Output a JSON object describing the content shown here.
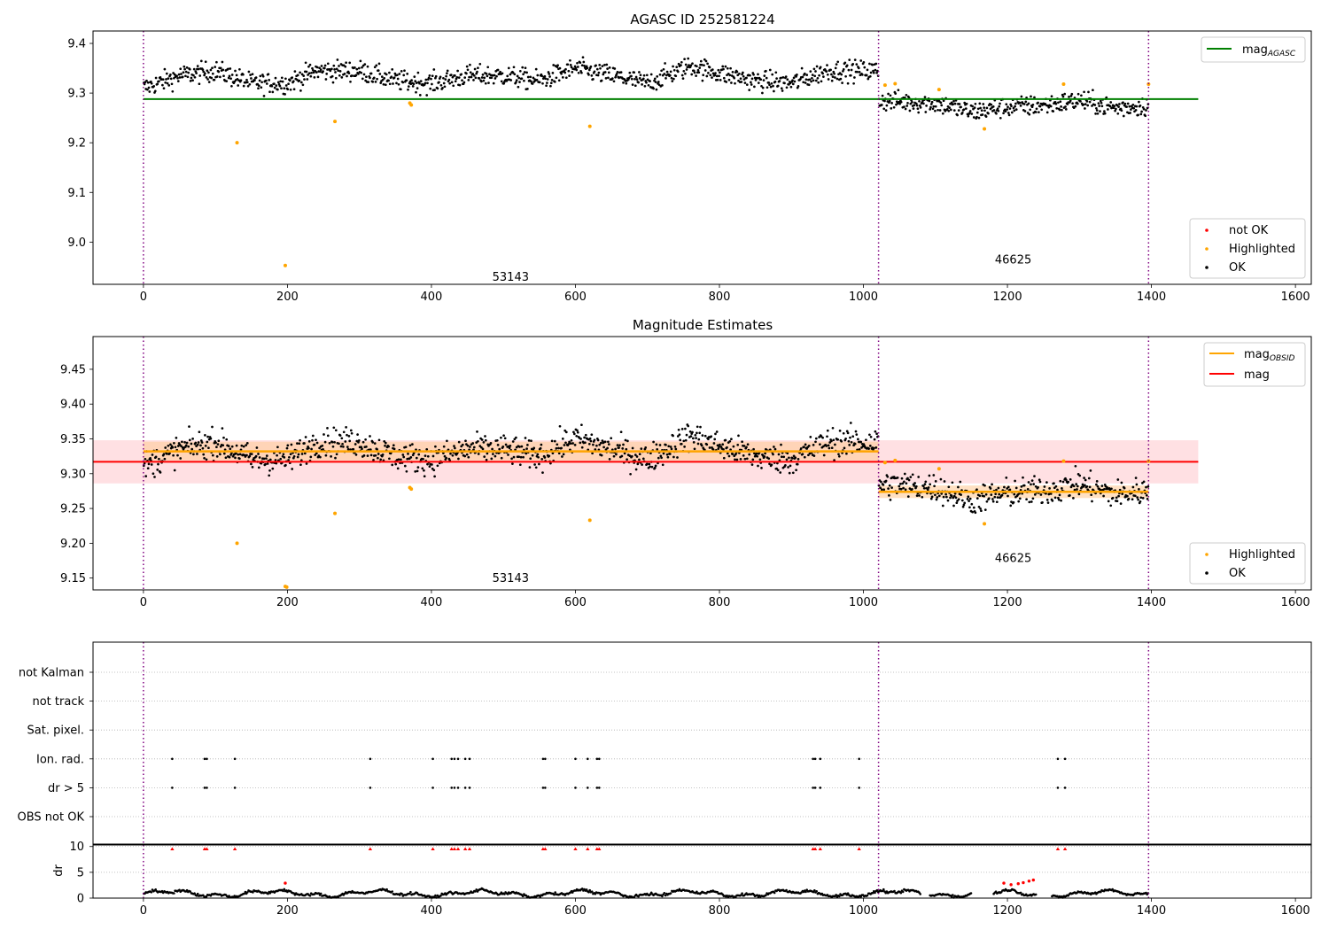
{
  "chart_data": [
    {
      "type": "scatter",
      "title": "AGASC ID 252581224",
      "xlim": [
        -70,
        1622
      ],
      "ylim": [
        8.915,
        9.425
      ],
      "xticks": [
        0,
        200,
        400,
        600,
        800,
        1000,
        1200,
        1400,
        1600
      ],
      "yticks": [
        9.0,
        9.1,
        9.2,
        9.3,
        9.4
      ],
      "obsid_boundaries": [
        0,
        1021,
        1396
      ],
      "obsid_labels": [
        {
          "text": "53143",
          "x": 510,
          "y": 8.92
        },
        {
          "text": "46625",
          "x": 1208,
          "y": 8.955
        }
      ],
      "mag_agasc": {
        "value": 9.288,
        "x": [
          0,
          1465
        ],
        "color": "#008000"
      },
      "legend_lines": [
        {
          "label": "mag",
          "sub": "AGASC",
          "color": "#008000"
        }
      ],
      "legend_points": [
        {
          "label": "not OK",
          "color": "#ff0000"
        },
        {
          "label": "Highlighted",
          "color": "#ffa500"
        },
        {
          "label": "OK",
          "color": "#000000"
        }
      ],
      "ok_segments": [
        {
          "x": [
            0,
            1021
          ],
          "knots": [
            [
              0,
              9.31
            ],
            [
              50,
              9.335
            ],
            [
              100,
              9.345
            ],
            [
              150,
              9.32
            ],
            [
              200,
              9.32
            ],
            [
              240,
              9.345
            ],
            [
              300,
              9.345
            ],
            [
              350,
              9.325
            ],
            [
              400,
              9.32
            ],
            [
              450,
              9.335
            ],
            [
              500,
              9.335
            ],
            [
              550,
              9.325
            ],
            [
              600,
              9.35
            ],
            [
              650,
              9.335
            ],
            [
              700,
              9.32
            ],
            [
              760,
              9.355
            ],
            [
              800,
              9.34
            ],
            [
              850,
              9.325
            ],
            [
              900,
              9.32
            ],
            [
              950,
              9.345
            ],
            [
              1021,
              9.345
            ]
          ],
          "spread": 0.012
        },
        {
          "x": [
            1021,
            1396
          ],
          "knots": [
            [
              1021,
              9.285
            ],
            [
              1100,
              9.28
            ],
            [
              1150,
              9.262
            ],
            [
              1200,
              9.272
            ],
            [
              1250,
              9.275
            ],
            [
              1300,
              9.285
            ],
            [
              1350,
              9.27
            ],
            [
              1396,
              9.275
            ]
          ],
          "spread": 0.012
        }
      ],
      "highlighted": [
        {
          "x": 130,
          "y": 9.2
        },
        {
          "x": 197,
          "y": 8.953
        },
        {
          "x": 266,
          "y": 9.243
        },
        {
          "x": 370,
          "y": 9.28
        },
        {
          "x": 372,
          "y": 9.276
        },
        {
          "x": 620,
          "y": 9.233
        },
        {
          "x": 1030,
          "y": 9.316
        },
        {
          "x": 1044,
          "y": 9.319
        },
        {
          "x": 1105,
          "y": 9.307
        },
        {
          "x": 1168,
          "y": 9.228
        },
        {
          "x": 1278,
          "y": 9.318
        },
        {
          "x": 1396,
          "y": 9.318
        }
      ]
    },
    {
      "type": "scatter",
      "title": "Magnitude Estimates",
      "xlim": [
        -70,
        1622
      ],
      "ylim": [
        9.133,
        9.497
      ],
      "xticks": [
        0,
        200,
        400,
        600,
        800,
        1000,
        1200,
        1400,
        1600
      ],
      "yticks": [
        9.15,
        9.2,
        9.25,
        9.3,
        9.35,
        9.4,
        9.45
      ],
      "obsid_boundaries": [
        0,
        1021,
        1396
      ],
      "obsid_labels": [
        {
          "text": "53143",
          "x": 510,
          "y": 9.143
        },
        {
          "text": "46625",
          "x": 1208,
          "y": 9.172
        }
      ],
      "mag": {
        "value": 9.317,
        "band": [
          9.286,
          9.348
        ],
        "x": [
          -70,
          1465
        ],
        "color": "#ff0000",
        "band_color": "#ffe0e3"
      },
      "mag_obsid": [
        {
          "x": [
            0,
            1021
          ],
          "value": 9.332,
          "band": [
            9.319,
            9.346
          ]
        },
        {
          "x": [
            1021,
            1396
          ],
          "value": 9.274,
          "band": [
            9.265,
            9.283
          ]
        }
      ],
      "mag_obsid_color": "#ffa500",
      "legend_lines": [
        {
          "label": "mag",
          "sub": "OBSID",
          "color": "#ffa500"
        },
        {
          "label": "mag",
          "sub": "",
          "color": "#ff0000"
        }
      ],
      "legend_points": [
        {
          "label": "Highlighted",
          "color": "#ffa500"
        },
        {
          "label": "OK",
          "color": "#000000"
        }
      ],
      "ok_segments": [
        {
          "x": [
            0,
            1021
          ],
          "knots": [
            [
              0,
              9.31
            ],
            [
              50,
              9.335
            ],
            [
              100,
              9.345
            ],
            [
              150,
              9.32
            ],
            [
              200,
              9.32
            ],
            [
              240,
              9.345
            ],
            [
              300,
              9.345
            ],
            [
              350,
              9.325
            ],
            [
              400,
              9.32
            ],
            [
              450,
              9.335
            ],
            [
              500,
              9.335
            ],
            [
              550,
              9.325
            ],
            [
              600,
              9.35
            ],
            [
              650,
              9.335
            ],
            [
              700,
              9.32
            ],
            [
              760,
              9.355
            ],
            [
              800,
              9.34
            ],
            [
              850,
              9.325
            ],
            [
              900,
              9.32
            ],
            [
              950,
              9.345
            ],
            [
              1021,
              9.345
            ]
          ],
          "spread": 0.012
        },
        {
          "x": [
            1021,
            1396
          ],
          "knots": [
            [
              1021,
              9.285
            ],
            [
              1100,
              9.28
            ],
            [
              1150,
              9.262
            ],
            [
              1200,
              9.272
            ],
            [
              1250,
              9.275
            ],
            [
              1300,
              9.285
            ],
            [
              1350,
              9.27
            ],
            [
              1396,
              9.275
            ]
          ],
          "spread": 0.012
        }
      ],
      "highlighted": [
        {
          "x": 130,
          "y": 9.2
        },
        {
          "x": 197,
          "y": 9.138
        },
        {
          "x": 199,
          "y": 9.137
        },
        {
          "x": 266,
          "y": 9.243
        },
        {
          "x": 370,
          "y": 9.28
        },
        {
          "x": 372,
          "y": 9.278
        },
        {
          "x": 620,
          "y": 9.233
        },
        {
          "x": 1030,
          "y": 9.316
        },
        {
          "x": 1044,
          "y": 9.319
        },
        {
          "x": 1105,
          "y": 9.307
        },
        {
          "x": 1168,
          "y": 9.228
        },
        {
          "x": 1278,
          "y": 9.318
        },
        {
          "x": 1396,
          "y": 9.318
        }
      ]
    },
    {
      "type": "scatter",
      "title": "",
      "xlim": [
        -70,
        1622
      ],
      "flags": [
        "not Kalman",
        "not track",
        "Sat. pixel.",
        "Ion. rad.",
        "dr > 5",
        "OBS not OK"
      ],
      "flag_points": [
        {
          "flag": "Ion. rad.",
          "x": [
            40,
            85,
            88,
            127,
            315,
            402,
            428,
            432,
            437,
            447,
            453,
            555,
            558,
            600,
            617,
            630,
            633,
            930,
            933,
            940,
            994,
            1270,
            1280
          ]
        },
        {
          "flag": "dr > 5",
          "x": [
            40,
            85,
            88,
            127,
            315,
            402,
            428,
            432,
            437,
            447,
            453,
            555,
            558,
            600,
            617,
            630,
            633,
            930,
            933,
            940,
            994,
            1270,
            1280
          ]
        }
      ],
      "obsid_boundaries": [
        0,
        1021,
        1396
      ],
      "dr_axis": {
        "ylabel": "dr",
        "yticks": [
          0,
          5,
          10
        ],
        "ylim": [
          0,
          10.3
        ]
      },
      "dr_clipped_x": [
        40,
        85,
        88,
        127,
        315,
        402,
        428,
        432,
        437,
        447,
        453,
        555,
        558,
        600,
        617,
        630,
        633,
        930,
        933,
        940,
        994,
        1270,
        1280
      ],
      "dr_red": [
        {
          "x": 197,
          "y": 2.9
        },
        {
          "x": 1195,
          "y": 2.9
        },
        {
          "x": 1205,
          "y": 2.6
        },
        {
          "x": 1215,
          "y": 2.8
        },
        {
          "x": 1222,
          "y": 3.0
        },
        {
          "x": 1230,
          "y": 3.3
        },
        {
          "x": 1236,
          "y": 3.5
        }
      ],
      "dr_ok_level": 0.9
    }
  ]
}
